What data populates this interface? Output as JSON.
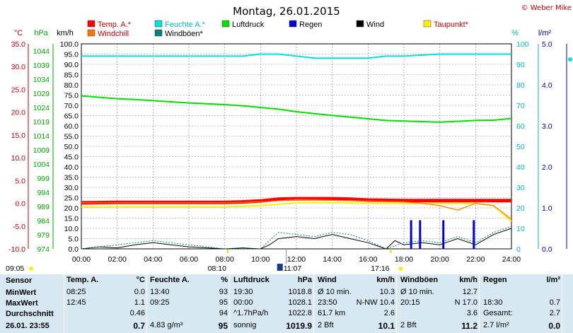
{
  "title": "Montag, 26.01.2015",
  "copyright": "© Weber Mike",
  "legend": [
    {
      "label": "Temp. A.*",
      "color": "#ff0000"
    },
    {
      "label": "Feuchte A.*",
      "color": "#00e0e0"
    },
    {
      "label": "Luftdruck",
      "color": "#00e000"
    },
    {
      "label": "Regen",
      "color": "#0000dd"
    },
    {
      "label": "Wind",
      "color": "#000000"
    },
    {
      "label": "Taupunkt*",
      "color": "#ffee00"
    },
    {
      "label": "Windchill",
      "color": "#ff7700"
    },
    {
      "label": "Windböen*",
      "color": "#008080"
    }
  ],
  "axes": {
    "temp_unit": "°C",
    "press_unit": "hPa",
    "wind_unit": "km/h",
    "hum_unit": "%",
    "rain_unit": "l/m²",
    "temp_ticks": [
      "35.0",
      "30.0",
      "25.0",
      "20.0",
      "15.0",
      "10.0",
      "5.0",
      "0.0",
      "-5.0",
      "-10.0"
    ],
    "press_ticks": [
      "1044",
      "1039",
      "1034",
      "1029",
      "1024",
      "1019",
      "1014",
      "1009",
      "1004",
      "999",
      "994",
      "989",
      "984",
      "979",
      "974"
    ],
    "wind_ticks": [
      "100.0",
      "95.0",
      "90.0",
      "85.0",
      "80.0",
      "75.0",
      "70.0",
      "65.0",
      "60.0",
      "55.0",
      "50.0",
      "45.0",
      "40.0",
      "35.0",
      "30.0",
      "25.0",
      "20.0",
      "15.0",
      "10.0",
      "5.0",
      "0.0"
    ],
    "hum_ticks": [
      "100",
      "90",
      "80",
      "70",
      "60",
      "50",
      "40",
      "30",
      "20",
      "10",
      "0"
    ],
    "rain_ticks": [
      "5.0",
      "4.0",
      "3.0",
      "2.0",
      "1.0",
      "0.0"
    ],
    "time_ticks": [
      "00:00",
      "02:00",
      "04:00",
      "06:00",
      "08:00",
      "10:00",
      "12:00",
      "14:00",
      "16:00",
      "18:00",
      "20:00",
      "22:00",
      "24:00"
    ]
  },
  "sun": {
    "sunrise_label": "08:10",
    "sunset_label": "17:16",
    "noon_label": "11:07",
    "left_label": "09:05"
  },
  "chart_data": {
    "type": "line",
    "title": "Montag, 26.01.2015",
    "x_unit": "hours",
    "xlim": [
      0,
      24
    ],
    "series": [
      {
        "name": "Temp. A.*",
        "axis": "°C",
        "color": "#ff0000",
        "points": [
          [
            0,
            0.1
          ],
          [
            2,
            0.2
          ],
          [
            4,
            0.2
          ],
          [
            6,
            0.2
          ],
          [
            8,
            0.2
          ],
          [
            9,
            0.3
          ],
          [
            10,
            0.5
          ],
          [
            11,
            0.9
          ],
          [
            12,
            1.0
          ],
          [
            13,
            1.0
          ],
          [
            14,
            1.0
          ],
          [
            15,
            0.9
          ],
          [
            16,
            0.7
          ],
          [
            18,
            0.6
          ],
          [
            20,
            0.6
          ],
          [
            22,
            0.6
          ],
          [
            24,
            0.6
          ]
        ]
      },
      {
        "name": "Feuchte A.*",
        "axis": "%",
        "color": "#00e0e0",
        "points": [
          [
            0,
            94
          ],
          [
            2,
            94
          ],
          [
            4,
            94
          ],
          [
            6,
            94
          ],
          [
            8,
            94
          ],
          [
            9,
            94
          ],
          [
            10,
            95
          ],
          [
            11,
            95
          ],
          [
            12,
            94
          ],
          [
            13,
            93
          ],
          [
            14,
            93
          ],
          [
            16,
            93
          ],
          [
            17,
            94
          ],
          [
            18,
            94
          ],
          [
            20,
            95
          ],
          [
            22,
            95
          ],
          [
            24,
            95
          ]
        ]
      },
      {
        "name": "Luftdruck",
        "axis": "hPa",
        "color": "#00e000",
        "points": [
          [
            0,
            1028.1
          ],
          [
            1,
            1027.6
          ],
          [
            2,
            1027.1
          ],
          [
            3,
            1026.8
          ],
          [
            4,
            1026.4
          ],
          [
            5,
            1026.0
          ],
          [
            6,
            1025.6
          ],
          [
            7,
            1025.3
          ],
          [
            8,
            1025.0
          ],
          [
            9,
            1024.6
          ],
          [
            10,
            1024.0
          ],
          [
            11,
            1023.4
          ],
          [
            12,
            1022.5
          ],
          [
            13,
            1021.8
          ],
          [
            14,
            1021.2
          ],
          [
            15,
            1020.6
          ],
          [
            16,
            1020.0
          ],
          [
            17,
            1019.4
          ],
          [
            18,
            1019.2
          ],
          [
            19,
            1019.0
          ],
          [
            20,
            1018.8
          ],
          [
            21,
            1019.1
          ],
          [
            22,
            1019.4
          ],
          [
            23,
            1019.5
          ],
          [
            24,
            1020.1
          ]
        ]
      },
      {
        "name": "Taupunkt*",
        "axis": "°C",
        "color": "#ffee00",
        "points": [
          [
            0,
            -0.8
          ],
          [
            4,
            -0.8
          ],
          [
            8,
            -0.8
          ],
          [
            10,
            -0.5
          ],
          [
            12,
            0.1
          ],
          [
            14,
            0.1
          ],
          [
            16,
            0.0
          ],
          [
            18,
            0.0
          ],
          [
            20,
            0.0
          ],
          [
            22,
            0.0
          ],
          [
            23,
            -0.5
          ],
          [
            24,
            -4.0
          ]
        ]
      },
      {
        "name": "Windchill",
        "axis": "°C",
        "color": "#ff7700",
        "points": [
          [
            0,
            0.1
          ],
          [
            4,
            0.1
          ],
          [
            8,
            0.1
          ],
          [
            10,
            0.3
          ],
          [
            12,
            0.8
          ],
          [
            16,
            0.5
          ],
          [
            18,
            0.3
          ],
          [
            19,
            0.0
          ],
          [
            20,
            -0.5
          ],
          [
            21,
            -1.5
          ],
          [
            22,
            0.0
          ],
          [
            23,
            -0.5
          ],
          [
            24,
            -3.5
          ]
        ]
      },
      {
        "name": "Wind",
        "axis": "km/h",
        "color": "#000000",
        "points": [
          [
            0,
            0
          ],
          [
            1,
            1
          ],
          [
            2,
            0.5
          ],
          [
            3,
            2
          ],
          [
            4,
            3
          ],
          [
            5,
            2
          ],
          [
            6,
            1
          ],
          [
            7,
            0.5
          ],
          [
            8,
            0
          ],
          [
            9,
            0.5
          ],
          [
            10,
            0
          ],
          [
            10.5,
            2
          ],
          [
            11,
            5
          ],
          [
            12,
            6
          ],
          [
            13,
            5
          ],
          [
            14,
            7
          ],
          [
            15,
            5
          ],
          [
            16,
            3
          ],
          [
            17,
            0
          ],
          [
            17.5,
            4
          ],
          [
            18,
            2
          ],
          [
            19,
            3
          ],
          [
            20,
            2
          ],
          [
            21,
            5
          ],
          [
            22,
            2
          ],
          [
            23,
            7
          ],
          [
            24,
            10
          ]
        ]
      },
      {
        "name": "Windböen*",
        "axis": "km/h",
        "color": "#008080",
        "points": [
          [
            0,
            0
          ],
          [
            2,
            2
          ],
          [
            3,
            3
          ],
          [
            4,
            4
          ],
          [
            5,
            3
          ],
          [
            6,
            2
          ],
          [
            8,
            0
          ],
          [
            10,
            0
          ],
          [
            10.5,
            4
          ],
          [
            11,
            8
          ],
          [
            12,
            7
          ],
          [
            13,
            6
          ],
          [
            14,
            8
          ],
          [
            15,
            7
          ],
          [
            16,
            4
          ],
          [
            17,
            0
          ],
          [
            18,
            3
          ],
          [
            19,
            4
          ],
          [
            20,
            3
          ],
          [
            21,
            6
          ],
          [
            22,
            3
          ],
          [
            23,
            8
          ],
          [
            24,
            11
          ]
        ]
      }
    ],
    "rain_bars": [
      {
        "x": 18.4,
        "y": 0.7
      },
      {
        "x": 18.9,
        "y": 0.7
      },
      {
        "x": 20.2,
        "y": 0.7
      },
      {
        "x": 21.9,
        "y": 0.7
      }
    ]
  },
  "stats": {
    "headers": {
      "sensor": "Sensor",
      "temp": "Temp. A.",
      "temp_u": "°C",
      "hum": "Feuchte A.",
      "hum_u": "%",
      "press": "Luftdruck",
      "press_u": "hPa",
      "wind": "Wind",
      "wind_u": "km/h",
      "gust": "Windböen",
      "gust_u": "km/h",
      "rain": "Regen",
      "rain_u": "l/m²"
    },
    "rows": [
      {
        "label": "MinWert",
        "temp_t": "08:25",
        "temp_v": "0.0",
        "hum_t": "13:40",
        "hum_v": "93",
        "press_t": "19:30",
        "press_v": "1018.8",
        "wind_t": "Ø 10 min.",
        "wind_v": "10.3",
        "gust_t": "Ø 10 min.",
        "gust_v": "12.7",
        "rain_t": "",
        "rain_v": ""
      },
      {
        "label": "MaxWert",
        "temp_t": "12:45",
        "temp_v": "1.1",
        "hum_t": "09:25",
        "hum_v": "95",
        "press_t": "00:00",
        "press_v": "1028.1",
        "wind_t": "23:50",
        "wind_v": "N-NW 10.4",
        "gust_t": "20:15",
        "gust_v": "N 17.0",
        "rain_t": "18:30",
        "rain_v": "0.7"
      },
      {
        "label": "Durchschnitt",
        "temp_t": "",
        "temp_v": "0.46",
        "hum_t": "",
        "hum_v": "94",
        "press_t": "^1.7hPa/h",
        "press_v": "1022.8",
        "wind_t": "61.7 km",
        "wind_v": "2.6",
        "gust_t": "",
        "gust_v": "3.6",
        "rain_t": "Gesamt:",
        "rain_v": "2.7"
      },
      {
        "label": "26.01. 23:55",
        "temp_t": "",
        "temp_v": "0.7",
        "hum_t": "4.83 g/m³",
        "hum_v": "95",
        "press_t": "sonnig",
        "press_v": "1019.9",
        "wind_t": "2 Bft",
        "wind_v": "10.1",
        "gust_t": "2 Bft",
        "gust_v": "11.2",
        "rain_t": "2.7 l/m²",
        "rain_v": "0.0"
      }
    ]
  }
}
